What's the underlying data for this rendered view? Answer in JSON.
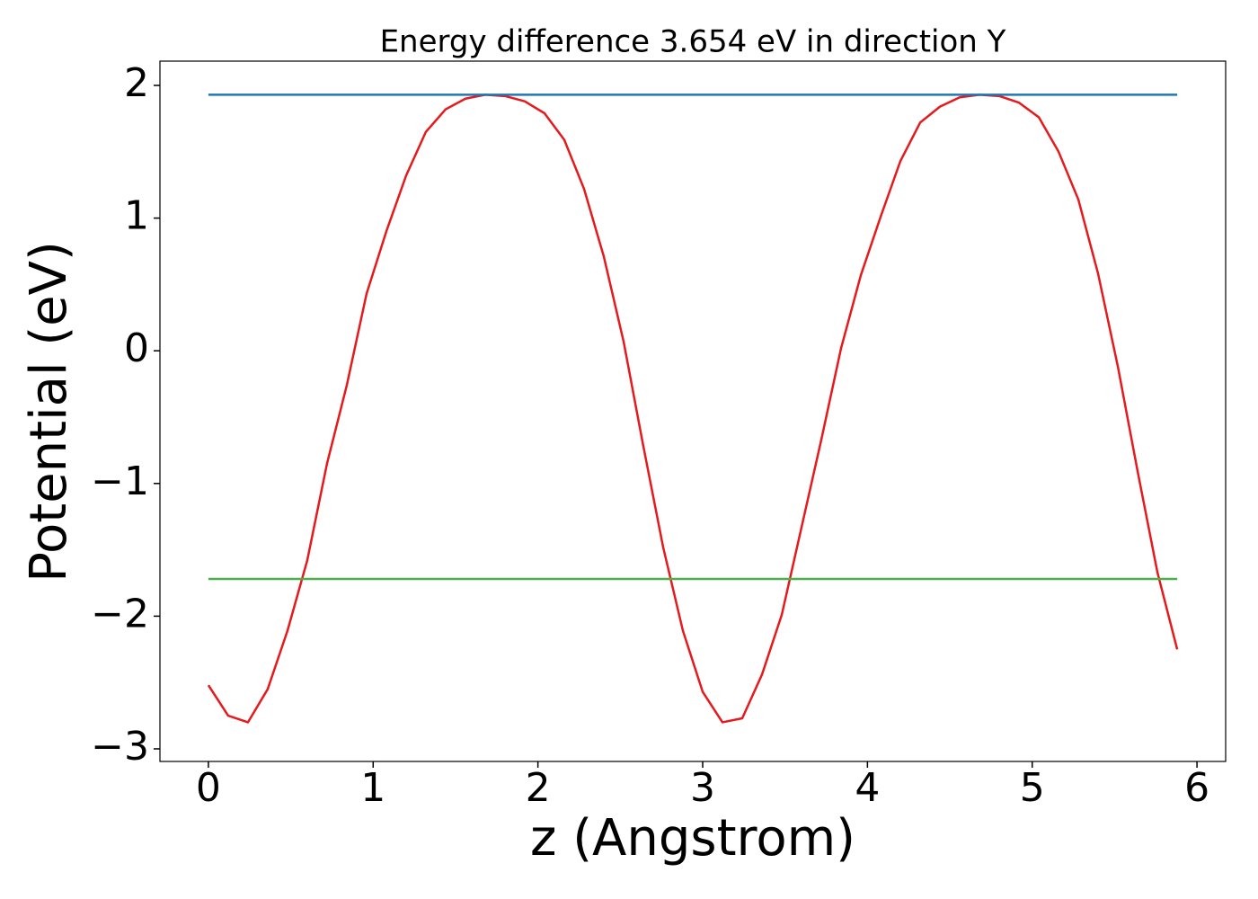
{
  "chart_data": {
    "type": "line",
    "title": "Energy difference 3.654 eV in direction Y",
    "xlabel": "z (Angstrom)",
    "ylabel": "Potential (eV)",
    "xlim": [
      -0.294,
      6.174
    ],
    "ylim": [
      -3.095,
      2.183
    ],
    "xticks": [
      0,
      1,
      2,
      3,
      4,
      5,
      6
    ],
    "yticks": [
      {
        "value": -3,
        "label": "−3"
      },
      {
        "value": -2,
        "label": "−2"
      },
      {
        "value": -1,
        "label": "−1"
      },
      0,
      1,
      2
    ],
    "grid": false,
    "series": [
      {
        "color": "#e41a1c",
        "x": [
          0,
          0.12,
          0.24,
          0.36,
          0.48,
          0.6,
          0.72,
          0.84,
          0.96,
          1.08,
          1.2,
          1.32,
          1.44,
          1.56,
          1.68,
          1.8,
          1.92,
          2.04,
          2.16,
          2.28,
          2.4,
          2.52,
          2.64,
          2.76,
          2.88,
          3.0,
          3.12,
          3.24,
          3.36,
          3.48,
          3.6,
          3.72,
          3.84,
          3.96,
          4.08,
          4.2,
          4.32,
          4.44,
          4.56,
          4.68,
          4.8,
          4.92,
          5.04,
          5.16,
          5.28,
          5.4,
          5.52,
          5.64,
          5.76,
          5.88
        ],
        "values": [
          -2.52,
          -2.75,
          -2.8,
          -2.55,
          -2.11,
          -1.58,
          -0.85,
          -0.26,
          0.43,
          0.9,
          1.32,
          1.65,
          1.82,
          1.9,
          1.93,
          1.92,
          1.88,
          1.79,
          1.59,
          1.22,
          0.71,
          0.07,
          -0.72,
          -1.48,
          -2.11,
          -2.57,
          -2.8,
          -2.77,
          -2.44,
          -1.99,
          -1.33,
          -0.67,
          0.02,
          0.57,
          1.01,
          1.43,
          1.72,
          1.84,
          1.91,
          1.93,
          1.92,
          1.87,
          1.76,
          1.5,
          1.14,
          0.58,
          -0.12,
          -0.91,
          -1.67,
          -2.25
        ]
      },
      {
        "color": "#1f77b4",
        "x": [
          0,
          5.88
        ],
        "values": [
          1.93,
          1.93
        ]
      },
      {
        "color": "#4daf4a",
        "x": [
          0,
          5.88
        ],
        "values": [
          -1.72,
          -1.72
        ]
      }
    ]
  }
}
